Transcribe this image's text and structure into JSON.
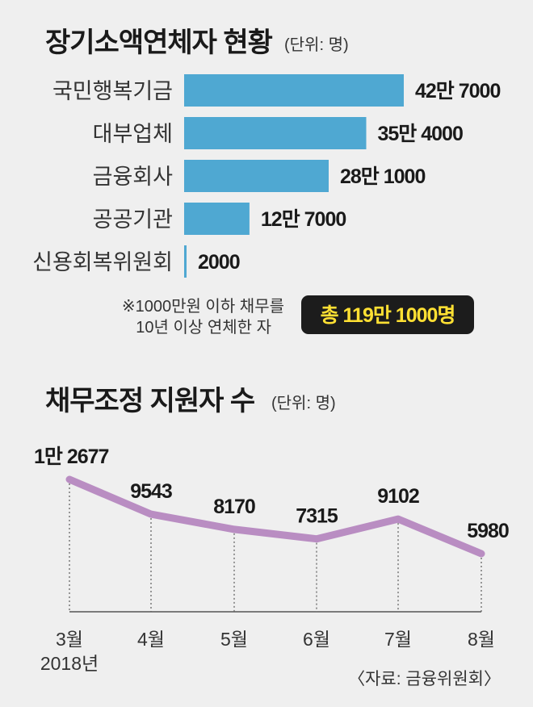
{
  "colors": {
    "bar": "#4fa8d2",
    "line": "#b98dc2",
    "background": "#efefef",
    "total_box": "#1c1c1c",
    "total_text": "#ffe033"
  },
  "chart_data": [
    {
      "type": "bar",
      "orientation": "horizontal",
      "title": "장기소액연체자 현황",
      "unit": "(단위: 명)",
      "categories": [
        "국민행복기금",
        "대부업체",
        "금융회사",
        "공공기관",
        "신용회복위원회"
      ],
      "values": [
        427000,
        354000,
        281000,
        127000,
        2000
      ],
      "value_labels": [
        "42만 7000",
        "35만 4000",
        "28만 1000",
        "12만 7000",
        "2000"
      ],
      "note_lines": [
        "※1000만원 이하 채무를",
        "10년 이상 연체한 자"
      ],
      "total_label": "총 119만 1000명"
    },
    {
      "type": "line",
      "title": "채무조정 지원자 수",
      "unit": "(단위: 명)",
      "categories": [
        "3월",
        "4월",
        "5월",
        "6월",
        "7월",
        "8월"
      ],
      "values": [
        12677,
        9543,
        8170,
        7315,
        9102,
        5980
      ],
      "value_labels": [
        "1만 2677",
        "9543",
        "8170",
        "7315",
        "9102",
        "5980"
      ],
      "year_label": "2018년",
      "source": "〈자료: 금융위원회〉"
    }
  ]
}
